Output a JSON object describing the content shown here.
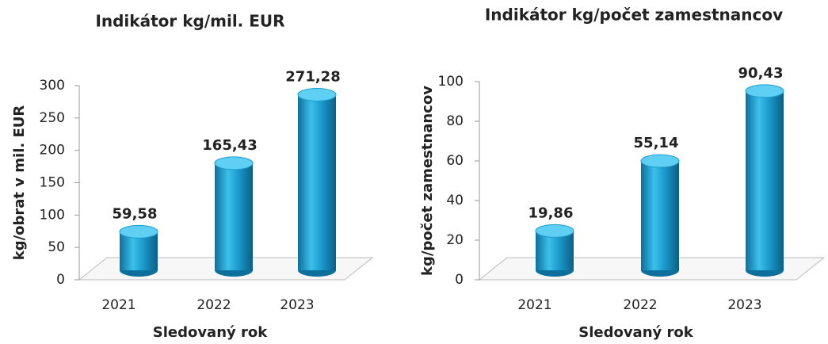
{
  "chart_data": [
    {
      "type": "bar",
      "title": "Indikátor kg/mil. EUR",
      "x_label": "Sledovaný rok",
      "y_label": "kg/obrat v mil. EUR",
      "categories": [
        "2021",
        "2022",
        "2023"
      ],
      "values": [
        59.58,
        165.43,
        271.28
      ],
      "value_labels": [
        "59,58",
        "165,43",
        "271,28"
      ],
      "color": "#1d9ccf",
      "ylim": [
        0,
        300
      ],
      "yticks": [
        0,
        50,
        100,
        150,
        200,
        250,
        300
      ]
    },
    {
      "type": "bar",
      "title": "Indikátor kg/počet zamestnancov",
      "x_label": "Sledovaný rok",
      "y_label": "kg/počet zamestnancov",
      "categories": [
        "2021",
        "2022",
        "2023"
      ],
      "values": [
        19.86,
        55.14,
        90.43
      ],
      "value_labels": [
        "19,86",
        "55,14",
        "90,43"
      ],
      "color": "#1d9ccf",
      "ylim": [
        0,
        100
      ],
      "yticks": [
        0,
        20,
        40,
        60,
        80,
        100
      ]
    }
  ]
}
